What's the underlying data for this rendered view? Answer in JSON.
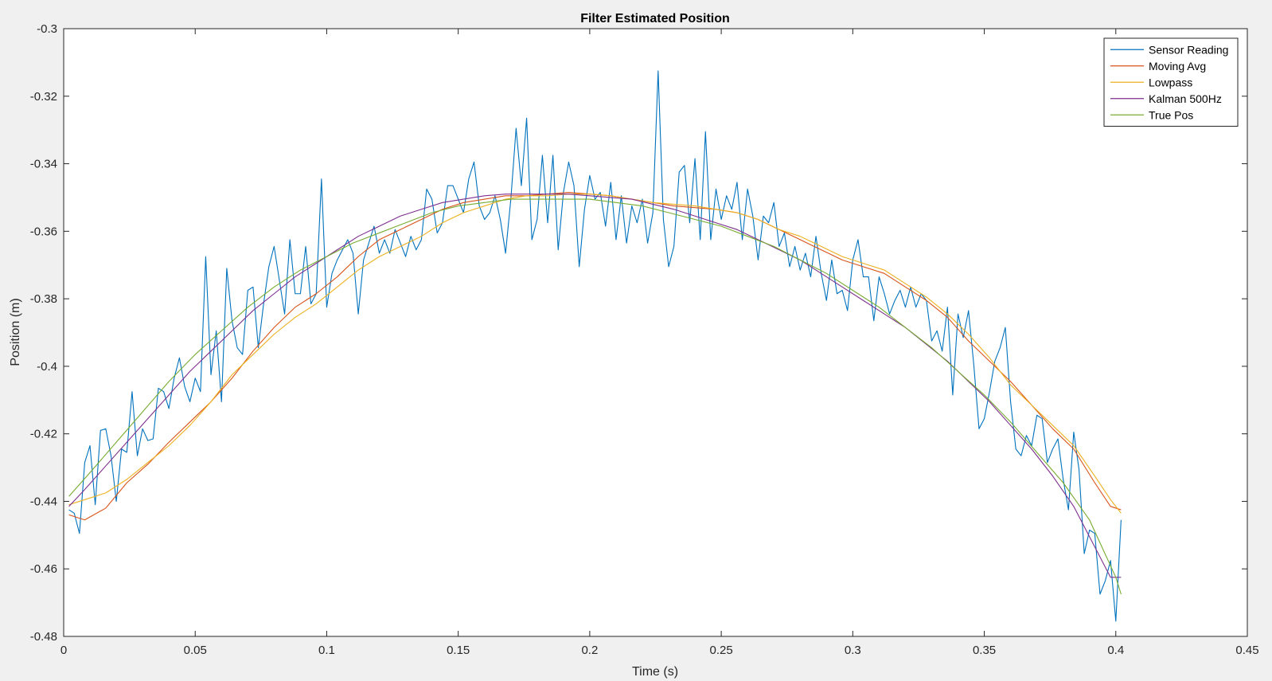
{
  "chart_data": {
    "type": "line",
    "title": "Filter Estimated Position",
    "xlabel": "Time (s)",
    "ylabel": "Position (m)",
    "xlim": [
      0,
      0.45
    ],
    "ylim": [
      -0.48,
      -0.3
    ],
    "xticks": [
      0,
      0.05,
      0.1,
      0.15,
      0.2,
      0.25,
      0.3,
      0.35,
      0.4,
      0.45
    ],
    "xtick_labels": [
      "0",
      "0.05",
      "0.1",
      "0.15",
      "0.2",
      "0.25",
      "0.3",
      "0.35",
      "0.4",
      "0.45"
    ],
    "yticks": [
      -0.48,
      -0.46,
      -0.44,
      -0.42,
      -0.4,
      -0.38,
      -0.36,
      -0.34,
      -0.32,
      -0.3
    ],
    "ytick_labels": [
      "-0.48",
      "-0.46",
      "-0.44",
      "-0.42",
      "-0.4",
      "-0.38",
      "-0.36",
      "-0.34",
      "-0.32",
      "-0.3"
    ],
    "grid": false,
    "legend_position": "top-right",
    "series": [
      {
        "name": "Sensor Reading",
        "color": "#0072BD",
        "x": [
          0.002,
          0.004,
          0.006,
          0.008,
          0.01,
          0.012,
          0.014,
          0.016,
          0.018,
          0.02,
          0.022,
          0.024,
          0.026,
          0.028,
          0.03,
          0.032,
          0.034,
          0.036,
          0.038,
          0.04,
          0.042,
          0.044,
          0.046,
          0.048,
          0.05,
          0.052,
          0.054,
          0.056,
          0.058,
          0.06,
          0.062,
          0.064,
          0.066,
          0.068,
          0.07,
          0.072,
          0.074,
          0.076,
          0.078,
          0.08,
          0.082,
          0.084,
          0.086,
          0.088,
          0.09,
          0.092,
          0.094,
          0.096,
          0.098,
          0.1,
          0.102,
          0.104,
          0.106,
          0.108,
          0.11,
          0.112,
          0.114,
          0.116,
          0.118,
          0.12,
          0.122,
          0.124,
          0.126,
          0.128,
          0.13,
          0.132,
          0.134,
          0.136,
          0.138,
          0.14,
          0.142,
          0.144,
          0.146,
          0.148,
          0.15,
          0.152,
          0.154,
          0.156,
          0.158,
          0.16,
          0.162,
          0.164,
          0.166,
          0.168,
          0.17,
          0.172,
          0.174,
          0.176,
          0.178,
          0.18,
          0.182,
          0.184,
          0.186,
          0.188,
          0.19,
          0.192,
          0.194,
          0.196,
          0.198,
          0.2,
          0.202,
          0.204,
          0.206,
          0.208,
          0.21,
          0.212,
          0.214,
          0.216,
          0.218,
          0.22,
          0.222,
          0.224,
          0.226,
          0.228,
          0.23,
          0.232,
          0.234,
          0.236,
          0.238,
          0.24,
          0.242,
          0.244,
          0.246,
          0.248,
          0.25,
          0.252,
          0.254,
          0.256,
          0.258,
          0.26,
          0.262,
          0.264,
          0.266,
          0.268,
          0.27,
          0.272,
          0.274,
          0.276,
          0.278,
          0.28,
          0.282,
          0.284,
          0.286,
          0.288,
          0.29,
          0.292,
          0.294,
          0.296,
          0.298,
          0.3,
          0.302,
          0.304,
          0.306,
          0.308,
          0.31,
          0.312,
          0.314,
          0.316,
          0.318,
          0.32,
          0.322,
          0.324,
          0.326,
          0.328,
          0.33,
          0.332,
          0.334,
          0.336,
          0.338,
          0.34,
          0.342,
          0.344,
          0.346,
          0.348,
          0.35,
          0.352,
          0.354,
          0.356,
          0.358,
          0.36,
          0.362,
          0.364,
          0.366,
          0.368,
          0.37,
          0.372,
          0.374,
          0.376,
          0.378,
          0.38,
          0.382,
          0.384,
          0.386,
          0.388,
          0.39,
          0.392,
          0.394,
          0.396,
          0.398,
          0.4,
          0.402
        ],
        "y": [
          -0.4425,
          -0.4435,
          -0.4495,
          -0.4285,
          -0.4235,
          -0.441,
          -0.419,
          -0.4185,
          -0.4265,
          -0.44,
          -0.4245,
          -0.4255,
          -0.4075,
          -0.4265,
          -0.4185,
          -0.422,
          -0.4215,
          -0.4065,
          -0.4075,
          -0.4125,
          -0.4035,
          -0.3975,
          -0.406,
          -0.4105,
          -0.4035,
          -0.4075,
          -0.3675,
          -0.4025,
          -0.3895,
          -0.4105,
          -0.371,
          -0.3865,
          -0.3945,
          -0.3965,
          -0.3775,
          -0.3765,
          -0.3945,
          -0.3815,
          -0.3705,
          -0.3645,
          -0.3745,
          -0.3845,
          -0.3625,
          -0.3785,
          -0.3785,
          -0.3645,
          -0.3815,
          -0.3785,
          -0.3445,
          -0.3825,
          -0.3725,
          -0.3685,
          -0.3655,
          -0.3625,
          -0.3665,
          -0.3845,
          -0.3685,
          -0.3635,
          -0.3585,
          -0.3665,
          -0.3625,
          -0.3665,
          -0.3595,
          -0.3635,
          -0.3675,
          -0.3615,
          -0.3655,
          -0.3625,
          -0.3475,
          -0.3505,
          -0.3605,
          -0.3575,
          -0.3465,
          -0.3465,
          -0.3505,
          -0.3545,
          -0.3445,
          -0.3395,
          -0.3525,
          -0.3565,
          -0.3545,
          -0.3495,
          -0.3565,
          -0.3665,
          -0.3505,
          -0.3295,
          -0.3465,
          -0.3265,
          -0.3625,
          -0.3565,
          -0.3375,
          -0.3575,
          -0.3375,
          -0.3655,
          -0.3485,
          -0.3395,
          -0.3465,
          -0.3705,
          -0.3535,
          -0.3435,
          -0.3505,
          -0.3485,
          -0.3585,
          -0.3455,
          -0.3625,
          -0.3495,
          -0.3635,
          -0.3525,
          -0.3575,
          -0.3505,
          -0.3635,
          -0.3545,
          -0.3125,
          -0.3565,
          -0.3705,
          -0.3645,
          -0.3425,
          -0.3405,
          -0.3575,
          -0.3385,
          -0.3625,
          -0.3305,
          -0.3625,
          -0.3475,
          -0.3565,
          -0.3495,
          -0.3535,
          -0.3455,
          -0.3625,
          -0.3475,
          -0.3555,
          -0.3685,
          -0.3555,
          -0.3575,
          -0.3515,
          -0.3645,
          -0.3605,
          -0.3705,
          -0.3645,
          -0.3715,
          -0.3665,
          -0.3735,
          -0.3615,
          -0.3725,
          -0.3805,
          -0.3685,
          -0.3785,
          -0.3775,
          -0.3835,
          -0.3685,
          -0.3625,
          -0.3735,
          -0.3735,
          -0.3865,
          -0.3735,
          -0.3785,
          -0.3845,
          -0.3805,
          -0.3775,
          -0.3825,
          -0.3765,
          -0.3825,
          -0.3785,
          -0.3805,
          -0.3925,
          -0.3895,
          -0.3955,
          -0.3825,
          -0.4085,
          -0.3845,
          -0.3915,
          -0.3835,
          -0.3995,
          -0.4185,
          -0.4155,
          -0.4075,
          -0.3985,
          -0.3945,
          -0.3885,
          -0.4105,
          -0.4245,
          -0.4265,
          -0.4205,
          -0.4235,
          -0.4145,
          -0.4155,
          -0.4285,
          -0.4245,
          -0.4215,
          -0.4335,
          -0.4425,
          -0.4195,
          -0.4305,
          -0.4555,
          -0.4485,
          -0.4495,
          -0.4675,
          -0.4635,
          -0.4575,
          -0.4755,
          -0.4455
        ]
      },
      {
        "name": "Moving Avg",
        "color": "#D95319",
        "x": [
          0.002,
          0.008,
          0.016,
          0.024,
          0.032,
          0.04,
          0.048,
          0.056,
          0.064,
          0.072,
          0.08,
          0.088,
          0.096,
          0.104,
          0.112,
          0.12,
          0.128,
          0.136,
          0.144,
          0.152,
          0.16,
          0.168,
          0.176,
          0.184,
          0.192,
          0.2,
          0.208,
          0.216,
          0.224,
          0.232,
          0.24,
          0.248,
          0.256,
          0.264,
          0.272,
          0.28,
          0.288,
          0.296,
          0.304,
          0.312,
          0.32,
          0.328,
          0.336,
          0.344,
          0.352,
          0.36,
          0.368,
          0.376,
          0.384,
          0.392,
          0.398,
          0.402
        ],
        "y": [
          -0.444,
          -0.4455,
          -0.442,
          -0.4345,
          -0.429,
          -0.4225,
          -0.4165,
          -0.4105,
          -0.4035,
          -0.3955,
          -0.3885,
          -0.3825,
          -0.3785,
          -0.3735,
          -0.3675,
          -0.3625,
          -0.3595,
          -0.3565,
          -0.3535,
          -0.3515,
          -0.3505,
          -0.3495,
          -0.3495,
          -0.349,
          -0.3485,
          -0.349,
          -0.3495,
          -0.3505,
          -0.3515,
          -0.3525,
          -0.353,
          -0.3535,
          -0.3545,
          -0.3565,
          -0.3595,
          -0.3625,
          -0.3655,
          -0.3685,
          -0.3705,
          -0.3725,
          -0.3765,
          -0.3805,
          -0.3855,
          -0.3925,
          -0.3985,
          -0.4045,
          -0.4115,
          -0.4185,
          -0.4245,
          -0.4345,
          -0.4415,
          -0.4425
        ]
      },
      {
        "name": "Lowpass",
        "color": "#EDB120",
        "x": [
          0.002,
          0.008,
          0.016,
          0.024,
          0.032,
          0.04,
          0.048,
          0.056,
          0.064,
          0.072,
          0.08,
          0.088,
          0.096,
          0.104,
          0.112,
          0.12,
          0.128,
          0.136,
          0.144,
          0.152,
          0.16,
          0.168,
          0.176,
          0.184,
          0.192,
          0.2,
          0.208,
          0.216,
          0.224,
          0.232,
          0.24,
          0.248,
          0.256,
          0.264,
          0.272,
          0.28,
          0.288,
          0.296,
          0.304,
          0.312,
          0.32,
          0.328,
          0.336,
          0.344,
          0.352,
          0.36,
          0.368,
          0.376,
          0.384,
          0.392,
          0.398,
          0.402
        ],
        "y": [
          -0.441,
          -0.4395,
          -0.4375,
          -0.4335,
          -0.4285,
          -0.4235,
          -0.4175,
          -0.4105,
          -0.4025,
          -0.3965,
          -0.3905,
          -0.3855,
          -0.3815,
          -0.3765,
          -0.3715,
          -0.3675,
          -0.3645,
          -0.3615,
          -0.3575,
          -0.3545,
          -0.3525,
          -0.3505,
          -0.3495,
          -0.3495,
          -0.349,
          -0.349,
          -0.3495,
          -0.3505,
          -0.3515,
          -0.352,
          -0.3525,
          -0.3535,
          -0.3545,
          -0.3565,
          -0.3595,
          -0.3615,
          -0.3645,
          -0.3675,
          -0.3695,
          -0.3715,
          -0.3755,
          -0.3795,
          -0.3845,
          -0.3905,
          -0.3975,
          -0.4055,
          -0.4115,
          -0.4175,
          -0.4235,
          -0.4325,
          -0.4395,
          -0.4435
        ]
      },
      {
        "name": "Kalman 500Hz",
        "color": "#7E2F8E",
        "x": [
          0.002,
          0.008,
          0.016,
          0.024,
          0.032,
          0.04,
          0.048,
          0.056,
          0.064,
          0.072,
          0.08,
          0.088,
          0.096,
          0.104,
          0.112,
          0.12,
          0.128,
          0.136,
          0.144,
          0.152,
          0.16,
          0.168,
          0.176,
          0.184,
          0.192,
          0.2,
          0.208,
          0.216,
          0.224,
          0.232,
          0.24,
          0.248,
          0.256,
          0.264,
          0.272,
          0.28,
          0.288,
          0.296,
          0.304,
          0.312,
          0.32,
          0.328,
          0.336,
          0.344,
          0.352,
          0.36,
          0.368,
          0.376,
          0.384,
          0.392,
          0.398,
          0.402
        ],
        "y": [
          -0.4415,
          -0.4365,
          -0.4295,
          -0.4225,
          -0.4155,
          -0.4085,
          -0.4015,
          -0.3955,
          -0.3895,
          -0.3835,
          -0.3785,
          -0.3735,
          -0.3695,
          -0.3655,
          -0.3615,
          -0.3585,
          -0.3555,
          -0.3535,
          -0.3515,
          -0.3505,
          -0.3495,
          -0.349,
          -0.349,
          -0.349,
          -0.349,
          -0.3495,
          -0.35,
          -0.3505,
          -0.352,
          -0.3535,
          -0.3555,
          -0.3575,
          -0.3595,
          -0.3625,
          -0.3655,
          -0.3685,
          -0.3725,
          -0.3765,
          -0.3805,
          -0.3845,
          -0.3885,
          -0.3935,
          -0.3985,
          -0.4045,
          -0.4105,
          -0.4175,
          -0.4245,
          -0.4325,
          -0.4415,
          -0.4535,
          -0.4625,
          -0.4625
        ]
      },
      {
        "name": "True Pos",
        "color": "#77AC30",
        "x": [
          0.002,
          0.01,
          0.02,
          0.03,
          0.04,
          0.05,
          0.06,
          0.07,
          0.08,
          0.09,
          0.1,
          0.11,
          0.12,
          0.13,
          0.14,
          0.15,
          0.16,
          0.17,
          0.18,
          0.19,
          0.2,
          0.21,
          0.22,
          0.23,
          0.24,
          0.25,
          0.26,
          0.27,
          0.28,
          0.29,
          0.3,
          0.31,
          0.32,
          0.33,
          0.34,
          0.35,
          0.36,
          0.37,
          0.38,
          0.39,
          0.4,
          0.402
        ],
        "y": [
          -0.4385,
          -0.4315,
          -0.4225,
          -0.4135,
          -0.4045,
          -0.3965,
          -0.3895,
          -0.3825,
          -0.3765,
          -0.3715,
          -0.3675,
          -0.3635,
          -0.3605,
          -0.3575,
          -0.3545,
          -0.3525,
          -0.3515,
          -0.3505,
          -0.3505,
          -0.3505,
          -0.3505,
          -0.3515,
          -0.3525,
          -0.3545,
          -0.3565,
          -0.3585,
          -0.3615,
          -0.3645,
          -0.3685,
          -0.3725,
          -0.3775,
          -0.3825,
          -0.3885,
          -0.3945,
          -0.4015,
          -0.4085,
          -0.4165,
          -0.4255,
          -0.4345,
          -0.4455,
          -0.4625,
          -0.4675
        ]
      }
    ]
  }
}
